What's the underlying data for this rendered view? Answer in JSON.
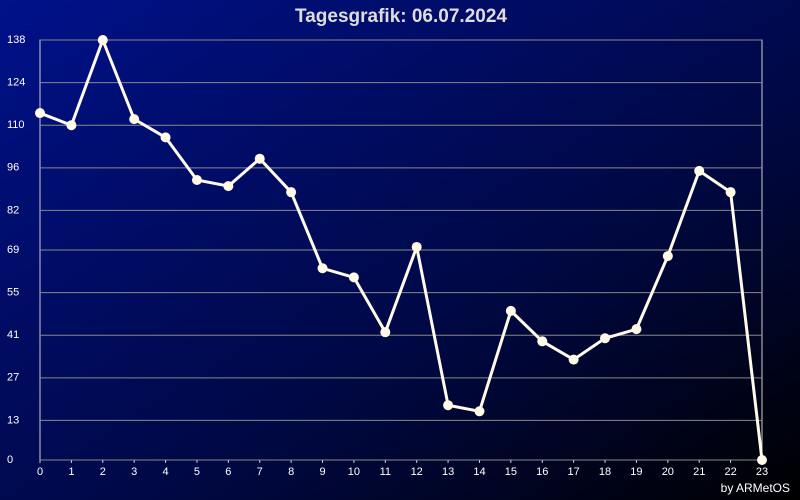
{
  "chart_data": {
    "type": "line",
    "title": "Tagesgrafik: 06.07.2024",
    "credit": "by ARMetOS",
    "x": [
      0,
      1,
      2,
      3,
      4,
      5,
      6,
      7,
      8,
      9,
      10,
      11,
      12,
      13,
      14,
      15,
      16,
      17,
      18,
      19,
      20,
      21,
      22,
      23
    ],
    "values": [
      114,
      110,
      138,
      112,
      106,
      92,
      90,
      99,
      88,
      63,
      60,
      42,
      70,
      18,
      16,
      49,
      39,
      33,
      40,
      43,
      67,
      95,
      88,
      0
    ],
    "color": "#fffbe8",
    "xlim": [
      0,
      23
    ],
    "xticks": [
      0,
      1,
      2,
      3,
      4,
      5,
      6,
      7,
      8,
      9,
      10,
      11,
      12,
      13,
      14,
      15,
      16,
      17,
      18,
      19,
      20,
      21,
      22,
      23
    ],
    "ylim": [
      0,
      138
    ],
    "yticks": [
      0,
      13,
      27,
      41,
      55,
      69,
      82,
      96,
      110,
      124,
      138
    ],
    "grid": true
  }
}
